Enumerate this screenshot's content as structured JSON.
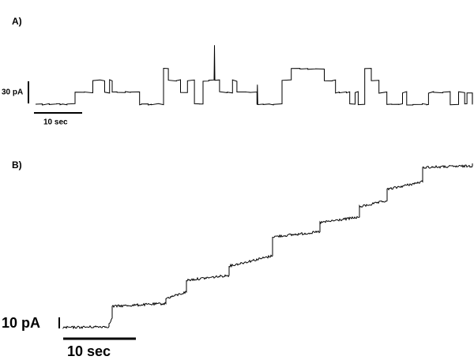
{
  "panels": [
    {
      "label": "A)",
      "scale_bar": {
        "y_label": "30 pA",
        "x_label": "10 sec"
      }
    },
    {
      "label": "B)",
      "scale_bar": {
        "y_label": "10 pA",
        "x_label": "10 sec"
      }
    }
  ]
}
